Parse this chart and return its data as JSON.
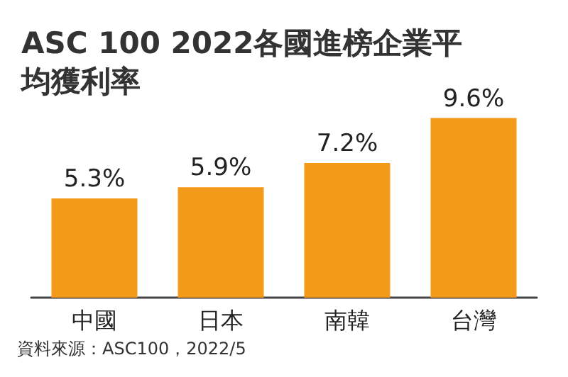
{
  "chart_data": {
    "type": "bar",
    "title": "ASC 100 2022各國進榜企業平均獲利率",
    "categories": [
      "中國",
      "日本",
      "南韓",
      "台灣"
    ],
    "values": [
      5.3,
      5.9,
      7.2,
      9.6
    ],
    "value_labels": [
      "5.3%",
      "5.9%",
      "7.2%",
      "9.6%"
    ],
    "color": "#f39a1b",
    "annotations": [
      "資料來源：ASC100，2022/5"
    ]
  }
}
